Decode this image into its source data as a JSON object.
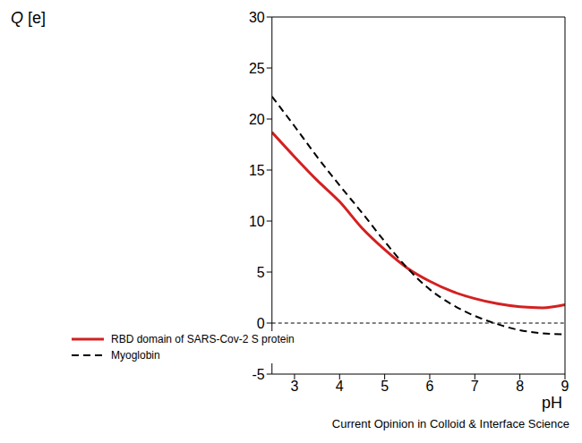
{
  "chart_data": {
    "type": "line",
    "xlabel": "pH",
    "ylabel": "Q [e]",
    "source": "Current Opinion in Colloid & Interface Science",
    "x": [
      2.5,
      3,
      3.5,
      4,
      4.5,
      5,
      5.5,
      6,
      6.5,
      7,
      7.5,
      8,
      8.5,
      9
    ],
    "series": [
      {
        "name": "RBD domain of SARS-Cov-2 S protein",
        "color": "#d42020",
        "line_style": "solid",
        "values": [
          18.7,
          16.3,
          14.0,
          11.9,
          9.3,
          7.2,
          5.4,
          4.1,
          3.1,
          2.4,
          1.9,
          1.6,
          1.5,
          1.8
        ]
      },
      {
        "name": "Myoglobin",
        "color": "#000000",
        "line_style": "dashed",
        "values": [
          22.2,
          19.3,
          16.3,
          13.5,
          10.8,
          8.0,
          5.4,
          3.3,
          1.8,
          0.7,
          -0.1,
          -0.7,
          -1.0,
          -1.1
        ]
      }
    ],
    "xlim": [
      2.5,
      9
    ],
    "xticks": [
      3,
      4,
      5,
      6,
      7,
      8,
      9
    ],
    "ylim": [
      -5,
      30
    ],
    "yticks": [
      -5,
      0,
      5,
      10,
      15,
      20,
      25,
      30
    ],
    "hline": 0,
    "legend": "lower left",
    "grid": false
  }
}
